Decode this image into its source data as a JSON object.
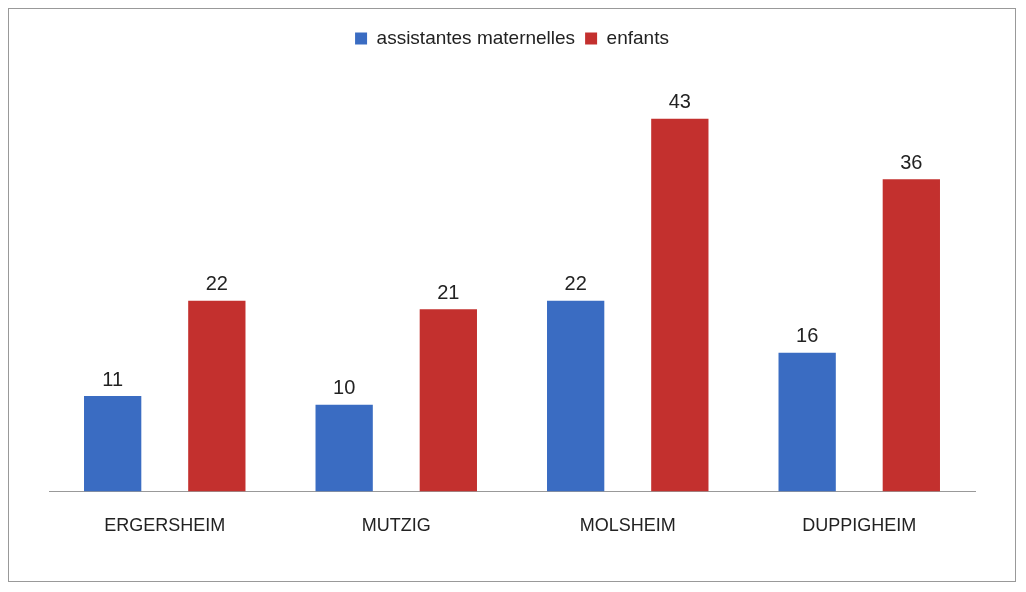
{
  "chart_data": {
    "type": "bar",
    "categories": [
      "ERGERSHEIM",
      "MUTZIG",
      "MOLSHEIM",
      "DUPPIGHEIM"
    ],
    "series": [
      {
        "name": "assistantes maternelles",
        "color": "#3a6cc2",
        "values": [
          11,
          10,
          22,
          16
        ]
      },
      {
        "name": "enfants",
        "color": "#c3302e",
        "values": [
          22,
          21,
          43,
          36
        ]
      }
    ],
    "data_labels": true,
    "legend": "top",
    "grid": false
  }
}
